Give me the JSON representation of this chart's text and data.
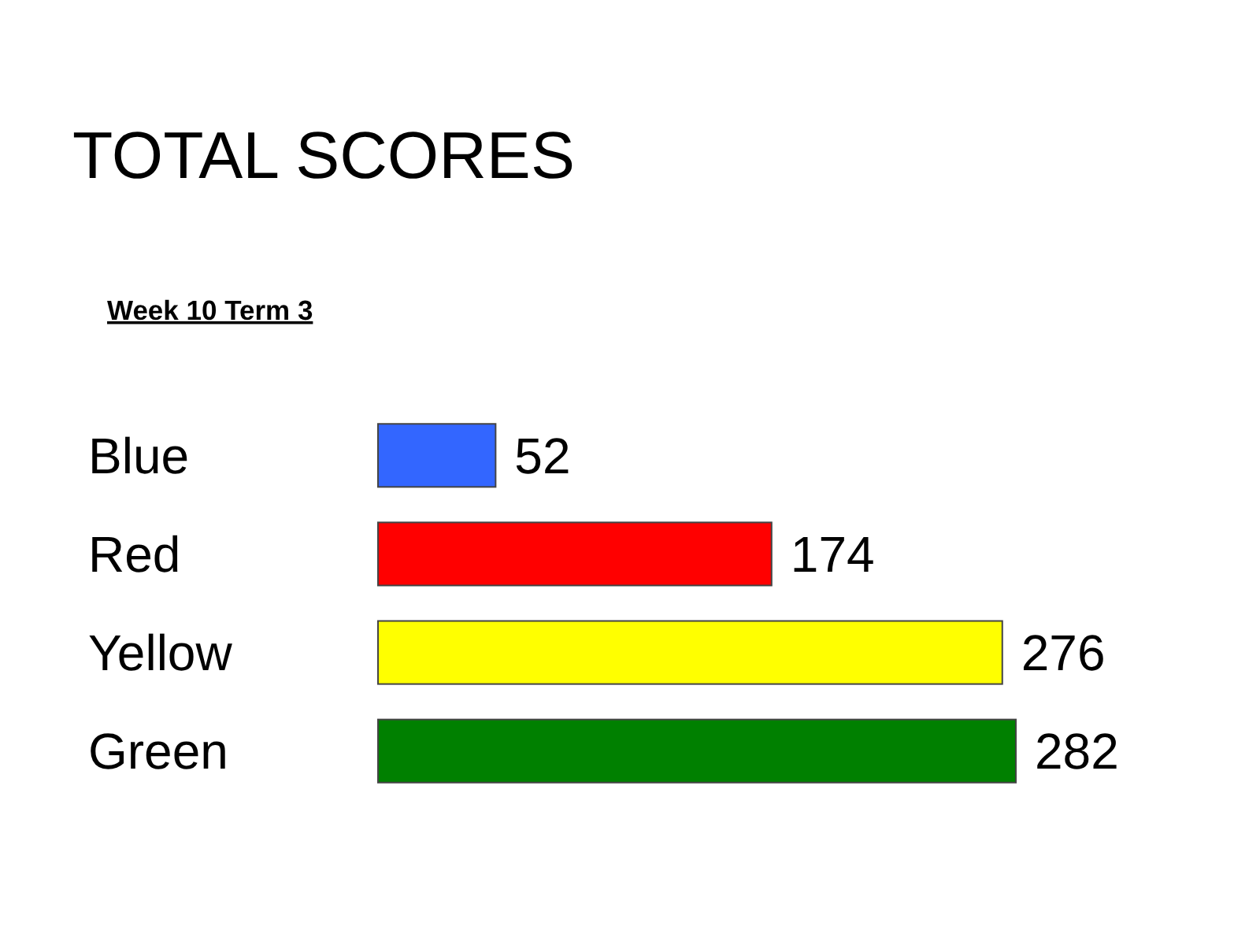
{
  "chart_data": {
    "type": "bar",
    "orientation": "horizontal",
    "title": "TOTAL SCORES",
    "subtitle": "Week 10 Term 3",
    "categories": [
      "Blue",
      "Red",
      "Yellow",
      "Green"
    ],
    "values": [
      52,
      174,
      276,
      282
    ],
    "colors": [
      "#3366ff",
      "#ff0000",
      "#ffff00",
      "#008000"
    ],
    "data_labels": true,
    "grid": false,
    "legend": false
  }
}
